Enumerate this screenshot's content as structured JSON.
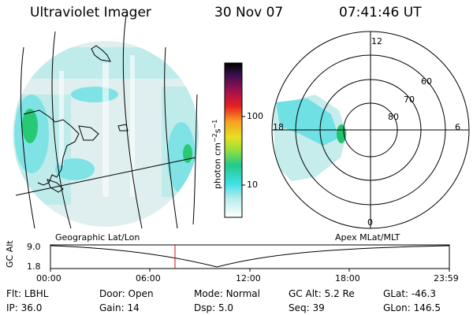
{
  "header": {
    "instrument": "Ultraviolet Imager",
    "date": "30 Nov 07",
    "time": "07:41:46 UT"
  },
  "colorbar": {
    "unit_label": "photon cm",
    "unit_exp1": "−2",
    "unit_s": "s",
    "unit_exp2": "−1",
    "ticks": [
      "100",
      "10"
    ]
  },
  "polar_plot": {
    "mlt_labels": {
      "top": "12",
      "left": "18",
      "right": "6",
      "bottom": "0"
    },
    "lat_labels": [
      "60",
      "70",
      "80"
    ]
  },
  "projection_labels": {
    "left": "Geographic Lat/Lon",
    "right": "Apex MLat/MLT"
  },
  "altitude_plot": {
    "ylabel": "GC Alt",
    "yticks": [
      "9.0",
      "1.8"
    ],
    "xticks": [
      "00:00",
      "06:00",
      "12:00",
      "18:00",
      "23:59"
    ]
  },
  "status": {
    "row1": [
      {
        "label": "Flt:",
        "value": "LBHL"
      },
      {
        "label": "Door:",
        "value": "Open"
      },
      {
        "label": "Mode:",
        "value": "Normal"
      },
      {
        "label": "GC Alt:",
        "value": "5.2 Re"
      },
      {
        "label": "GLat:",
        "value": "-46.3"
      }
    ],
    "row2": [
      {
        "label": "IP:",
        "value": "36.0"
      },
      {
        "label": "Gain:",
        "value": "14"
      },
      {
        "label": "Dsp:",
        "value": "5.0"
      },
      {
        "label": "Seq:",
        "value": "39"
      },
      {
        "label": "GLon:",
        "value": "146.5"
      }
    ]
  },
  "colors": {
    "background": "#ffffff",
    "foreground": "#000000",
    "glow_low": "#c8eded",
    "glow_mid": "#66dde0",
    "glow_high": "#22c36e",
    "time_marker": "#d01010"
  }
}
